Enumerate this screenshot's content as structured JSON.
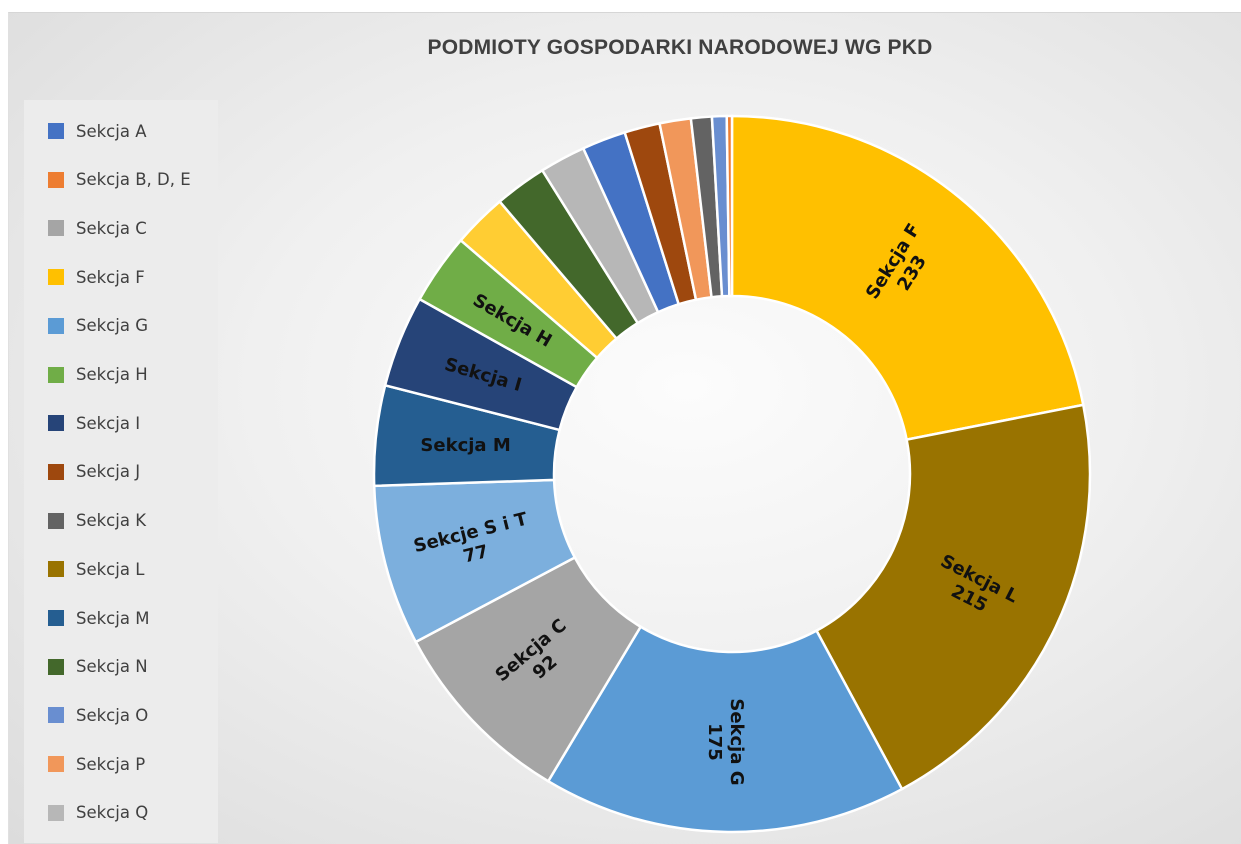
{
  "chart_data": {
    "type": "pie",
    "variant": "doughnut",
    "title": "PODMIOTY GOSPODARKI NARODOWEJ WG PKD",
    "legend_position": "left",
    "legend": [
      {
        "label": "Sekcja A",
        "color": "#4472C4"
      },
      {
        "label": "Sekcja B, D, E",
        "color": "#ED7D31"
      },
      {
        "label": "Sekcja C",
        "color": "#A5A5A5"
      },
      {
        "label": "Sekcja F",
        "color": "#FFC000"
      },
      {
        "label": "Sekcja G",
        "color": "#5B9BD5"
      },
      {
        "label": "Sekcja H",
        "color": "#70AD47"
      },
      {
        "label": "Sekcja I",
        "color": "#264478"
      },
      {
        "label": "Sekcja J",
        "color": "#9E480E"
      },
      {
        "label": "Sekcja K",
        "color": "#636363"
      },
      {
        "label": "Sekcja L",
        "color": "#997300"
      },
      {
        "label": "Sekcja M",
        "color": "#255E91"
      },
      {
        "label": "Sekcja N",
        "color": "#43682B"
      },
      {
        "label": "Sekcja O",
        "color": "#698ED0"
      },
      {
        "label": "Sekcja P",
        "color": "#F1975A"
      },
      {
        "label": "Sekcja Q",
        "color": "#B7B7B7"
      }
    ],
    "slices": [
      {
        "name": "Sekcja F",
        "value": 233,
        "color": "#FFC000",
        "label_lines": [
          "Sekcja F",
          "233"
        ],
        "label_rotation": -58
      },
      {
        "name": "Sekcja L",
        "value": 215,
        "color": "#997300",
        "label_lines": [
          "Sekcja L",
          "215"
        ],
        "label_rotation": 27
      },
      {
        "name": "Sekcja G",
        "value": 175,
        "color": "#5B9BD5",
        "label_lines": [
          "Sekcja G",
          "175"
        ],
        "label_rotation": 90
      },
      {
        "name": "Sekcja C",
        "value": 92,
        "color": "#A5A5A5",
        "label_lines": [
          "Sekcja C",
          "92"
        ],
        "label_rotation": -40
      },
      {
        "name": "Sekcje S i T",
        "value": 77,
        "color": "#7CAFDD",
        "label_lines": [
          "Sekcje S i T",
          "77"
        ],
        "label_rotation": -14
      },
      {
        "name": "Sekcja M",
        "value": 48,
        "color": "#255E91",
        "label_lines": [
          "Sekcja M"
        ],
        "label_rotation": 0
      },
      {
        "name": "Sekcja I",
        "value": 44,
        "color": "#264478",
        "label_lines": [
          "Sekcja I"
        ],
        "label_rotation": 16
      },
      {
        "name": "Sekcja H",
        "value": 34,
        "color": "#70AD47",
        "label_lines": [
          "Sekcja H"
        ],
        "label_rotation": 30
      },
      {
        "name": "",
        "value": 26,
        "color": "#FFCD33",
        "label_lines": [],
        "label_rotation": 0
      },
      {
        "name": "Sekcja N",
        "value": 25,
        "color": "#43682B",
        "label_lines": [],
        "label_rotation": 0
      },
      {
        "name": "",
        "value": 22,
        "color": "#B7B7B7",
        "label_lines": [],
        "label_rotation": 0
      },
      {
        "name": "",
        "value": 21,
        "color": "#4472C4",
        "label_lines": [],
        "label_rotation": 0
      },
      {
        "name": "Sekcja J",
        "value": 17,
        "color": "#9E480E",
        "label_lines": [],
        "label_rotation": 0
      },
      {
        "name": "Sekcja P",
        "value": 15,
        "color": "#F1975A",
        "label_lines": [],
        "label_rotation": 0
      },
      {
        "name": "Sekcja K",
        "value": 10,
        "color": "#636363",
        "label_lines": [],
        "label_rotation": 0
      },
      {
        "name": "Sekcja O",
        "value": 7,
        "color": "#698ED0",
        "label_lines": [],
        "label_rotation": 0
      },
      {
        "name": "Sekcja B, D, E",
        "value": 2.5,
        "color": "#ED7D31",
        "label_lines": [],
        "label_rotation": 0
      }
    ]
  }
}
